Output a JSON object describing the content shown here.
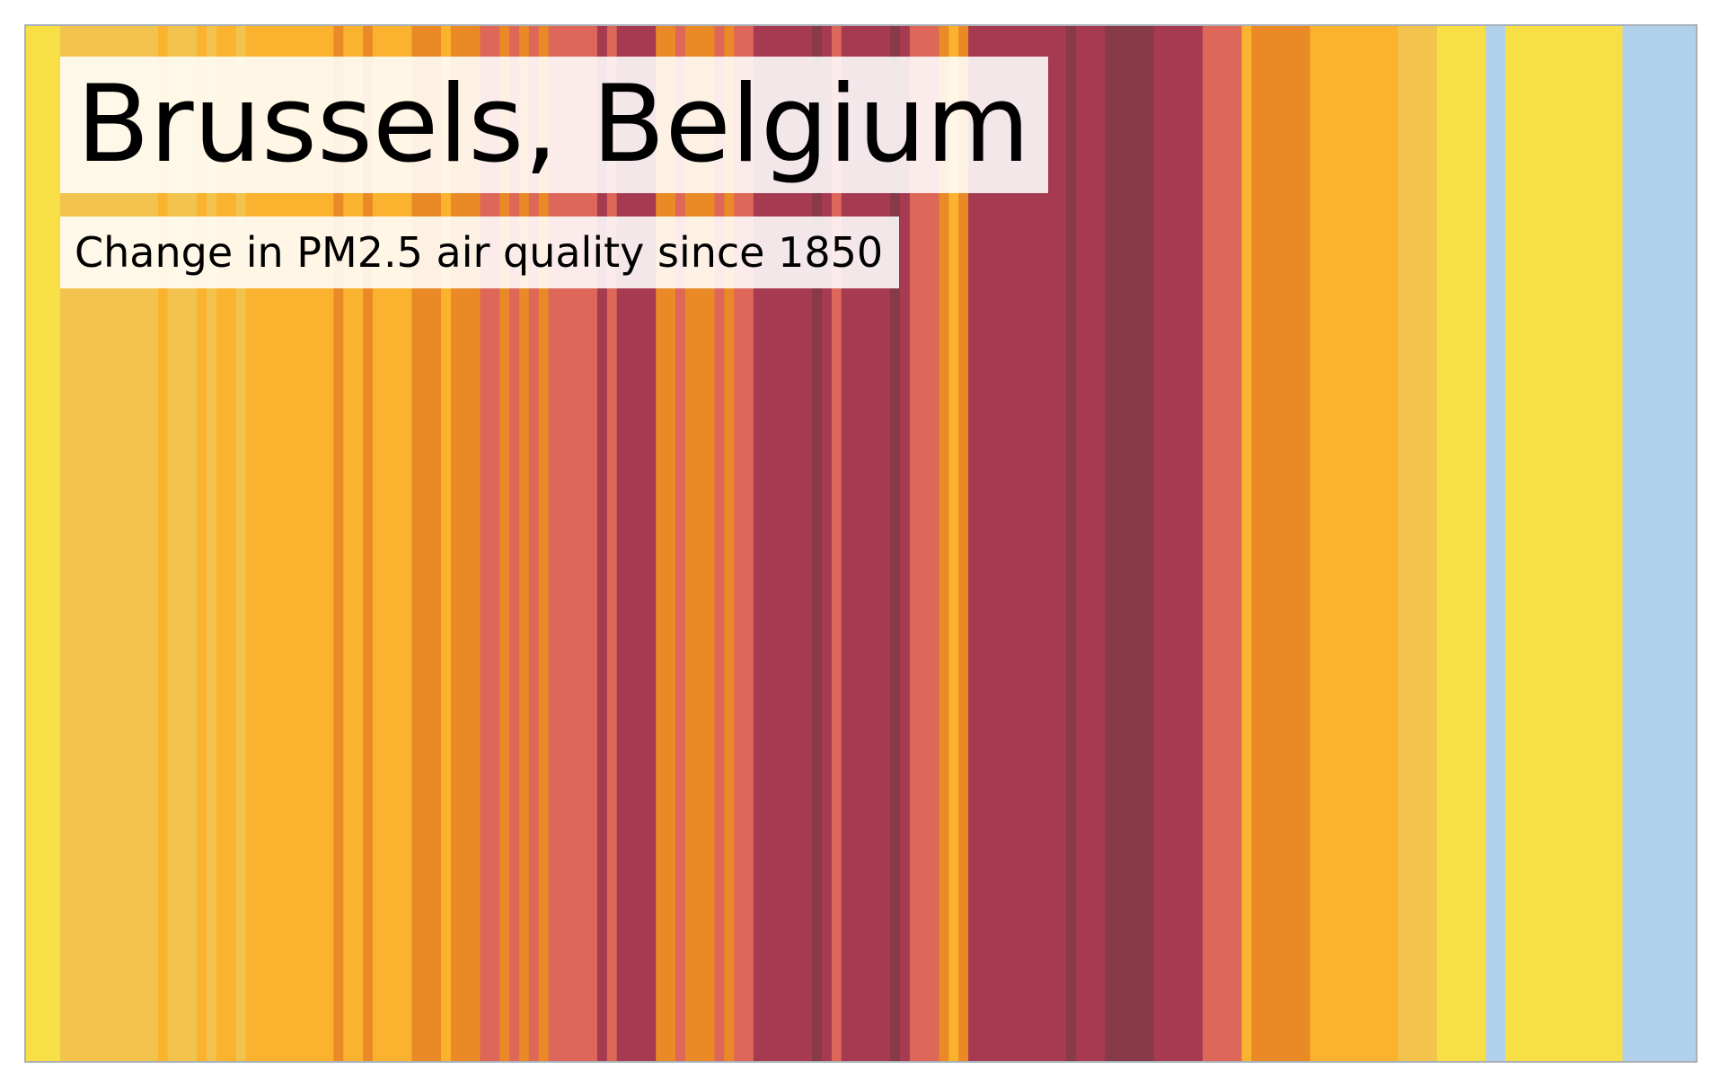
{
  "chart_data": {
    "type": "heatmap",
    "title": "Brussels, Belgium",
    "subtitle": "Change in PM2.5 air quality since 1850",
    "xlim": [
      1850,
      2021
    ],
    "palette": {
      "light_blue": "#b1d0ec",
      "yellow": "#f8df46",
      "light_orange": "#f2c44e",
      "orange": "#fbb22e",
      "dark_orange": "#e98a26",
      "salmon": "#dd6758",
      "crimson": "#a63a50",
      "maroon": "#873a48"
    },
    "stripes": [
      {
        "start": 1850,
        "end": 1853.5,
        "level": "yellow"
      },
      {
        "start": 1853.5,
        "end": 1863.5,
        "level": "light_orange"
      },
      {
        "start": 1863.5,
        "end": 1864.5,
        "level": "orange"
      },
      {
        "start": 1864.5,
        "end": 1867.5,
        "level": "light_orange"
      },
      {
        "start": 1867.5,
        "end": 1868.5,
        "level": "orange"
      },
      {
        "start": 1868.5,
        "end": 1869.5,
        "level": "light_orange"
      },
      {
        "start": 1869.5,
        "end": 1871.5,
        "level": "orange"
      },
      {
        "start": 1871.5,
        "end": 1872.5,
        "level": "light_orange"
      },
      {
        "start": 1872.5,
        "end": 1881.5,
        "level": "orange"
      },
      {
        "start": 1881.5,
        "end": 1882.5,
        "level": "dark_orange"
      },
      {
        "start": 1882.5,
        "end": 1884.5,
        "level": "orange"
      },
      {
        "start": 1884.5,
        "end": 1885.5,
        "level": "dark_orange"
      },
      {
        "start": 1885.5,
        "end": 1889.5,
        "level": "orange"
      },
      {
        "start": 1889.5,
        "end": 1892.5,
        "level": "dark_orange"
      },
      {
        "start": 1892.5,
        "end": 1893.5,
        "level": "orange"
      },
      {
        "start": 1893.5,
        "end": 1896.5,
        "level": "dark_orange"
      },
      {
        "start": 1896.5,
        "end": 1898.5,
        "level": "salmon"
      },
      {
        "start": 1898.5,
        "end": 1899.5,
        "level": "dark_orange"
      },
      {
        "start": 1899.5,
        "end": 1900.5,
        "level": "salmon"
      },
      {
        "start": 1900.5,
        "end": 1901.5,
        "level": "dark_orange"
      },
      {
        "start": 1901.5,
        "end": 1902.5,
        "level": "salmon"
      },
      {
        "start": 1902.5,
        "end": 1903.5,
        "level": "dark_orange"
      },
      {
        "start": 1903.5,
        "end": 1908.5,
        "level": "salmon"
      },
      {
        "start": 1908.5,
        "end": 1909.5,
        "level": "crimson"
      },
      {
        "start": 1909.5,
        "end": 1910.5,
        "level": "salmon"
      },
      {
        "start": 1910.5,
        "end": 1914.5,
        "level": "crimson"
      },
      {
        "start": 1914.5,
        "end": 1916.5,
        "level": "dark_orange"
      },
      {
        "start": 1916.5,
        "end": 1917.5,
        "level": "salmon"
      },
      {
        "start": 1917.5,
        "end": 1920.5,
        "level": "dark_orange"
      },
      {
        "start": 1920.5,
        "end": 1921.5,
        "level": "salmon"
      },
      {
        "start": 1921.5,
        "end": 1922.5,
        "level": "dark_orange"
      },
      {
        "start": 1922.5,
        "end": 1924.5,
        "level": "salmon"
      },
      {
        "start": 1924.5,
        "end": 1930.5,
        "level": "crimson"
      },
      {
        "start": 1930.5,
        "end": 1931.5,
        "level": "maroon"
      },
      {
        "start": 1931.5,
        "end": 1932.5,
        "level": "crimson"
      },
      {
        "start": 1932.5,
        "end": 1933.5,
        "level": "salmon"
      },
      {
        "start": 1933.5,
        "end": 1938.5,
        "level": "crimson"
      },
      {
        "start": 1938.5,
        "end": 1939.5,
        "level": "maroon"
      },
      {
        "start": 1939.5,
        "end": 1940.5,
        "level": "crimson"
      },
      {
        "start": 1940.5,
        "end": 1943.5,
        "level": "salmon"
      },
      {
        "start": 1943.5,
        "end": 1944.5,
        "level": "dark_orange"
      },
      {
        "start": 1944.5,
        "end": 1945.5,
        "level": "orange"
      },
      {
        "start": 1945.5,
        "end": 1946.5,
        "level": "dark_orange"
      },
      {
        "start": 1946.5,
        "end": 1956.5,
        "level": "crimson"
      },
      {
        "start": 1956.5,
        "end": 1957.5,
        "level": "maroon"
      },
      {
        "start": 1957.5,
        "end": 1960.5,
        "level": "crimson"
      },
      {
        "start": 1960.5,
        "end": 1965.5,
        "level": "maroon"
      },
      {
        "start": 1965.5,
        "end": 1970.5,
        "level": "crimson"
      },
      {
        "start": 1970.5,
        "end": 1974.5,
        "level": "salmon"
      },
      {
        "start": 1974.5,
        "end": 1975.5,
        "level": "orange"
      },
      {
        "start": 1975.5,
        "end": 1981.5,
        "level": "dark_orange"
      },
      {
        "start": 1981.5,
        "end": 1990.5,
        "level": "orange"
      },
      {
        "start": 1990.5,
        "end": 1994.5,
        "level": "light_orange"
      },
      {
        "start": 1994.5,
        "end": 1999.5,
        "level": "yellow"
      },
      {
        "start": 1999.5,
        "end": 2001.5,
        "level": "light_blue"
      },
      {
        "start": 2001.5,
        "end": 2013.5,
        "level": "yellow"
      },
      {
        "start": 2013.5,
        "end": 2021,
        "level": "light_blue"
      }
    ]
  }
}
